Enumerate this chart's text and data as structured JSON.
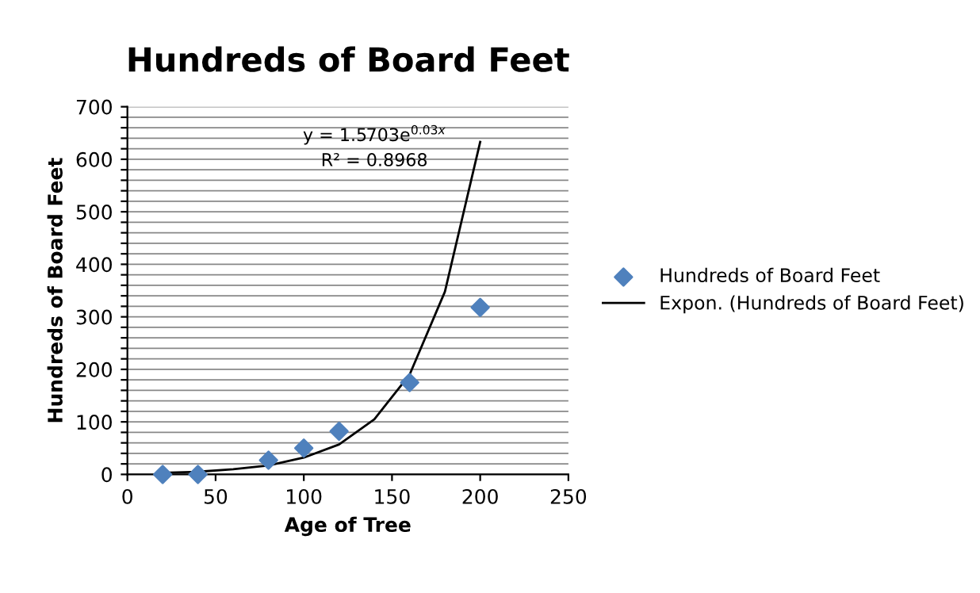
{
  "chart_data": {
    "type": "scatter",
    "title": "Hundreds of Board Feet",
    "xlabel": "Age of Tree",
    "ylabel": "Hundreds of Board Feet",
    "series": [
      {
        "name": "Hundreds of Board Feet",
        "color": "#4f81bd",
        "marker": "diamond",
        "x": [
          20,
          40,
          80,
          100,
          120,
          160,
          200
        ],
        "values": [
          0,
          0,
          27,
          50,
          82,
          175,
          318
        ]
      },
      {
        "name": "Expon. (Hundreds of Board Feet)",
        "type": "line",
        "color": "#000000",
        "marker": "none",
        "line_style": "solid",
        "x": [
          20,
          40,
          60,
          80,
          100,
          120,
          140,
          160,
          180,
          200
        ],
        "values": [
          3,
          5,
          10,
          17,
          32,
          57,
          105,
          190,
          348,
          633
        ]
      }
    ],
    "annotations": [
      "y = 1.5703e$^{0.03x}$",
      "R² = 0.8968"
    ],
    "xlim": [
      0,
      250
    ],
    "xticks": [
      0,
      50,
      100,
      150,
      200,
      250
    ],
    "ylim": [
      0,
      700
    ],
    "yticks": [
      0,
      {
        "value": 20,
        "label": null
      },
      {
        "value": 40,
        "label": null
      },
      {
        "value": 60,
        "label": null
      },
      {
        "value": 80,
        "label": null
      },
      100,
      {
        "value": 120,
        "label": null
      },
      {
        "value": 140,
        "label": null
      },
      {
        "value": 160,
        "label": null
      },
      {
        "value": 180,
        "label": null
      },
      200,
      {
        "value": 220,
        "label": null
      },
      {
        "value": 240,
        "label": null
      },
      {
        "value": 260,
        "label": null
      },
      {
        "value": 280,
        "label": null
      },
      300,
      {
        "value": 320,
        "label": null
      },
      {
        "value": 340,
        "label": null
      },
      {
        "value": 360,
        "label": null
      },
      {
        "value": 380,
        "label": null
      },
      400,
      {
        "value": 420,
        "label": null
      },
      {
        "value": 440,
        "label": null
      },
      {
        "value": 460,
        "label": null
      },
      {
        "value": 480,
        "label": null
      },
      500,
      {
        "value": 520,
        "label": null
      },
      {
        "value": 540,
        "label": null
      },
      {
        "value": 560,
        "label": null
      },
      {
        "value": 580,
        "label": null
      },
      600,
      {
        "value": 620,
        "label": null
      },
      {
        "value": 640,
        "label": null
      },
      {
        "value": 660,
        "label": null
      },
      {
        "value": 680,
        "label": null
      },
      700
    ],
    "grid": "y",
    "legend": "right"
  }
}
